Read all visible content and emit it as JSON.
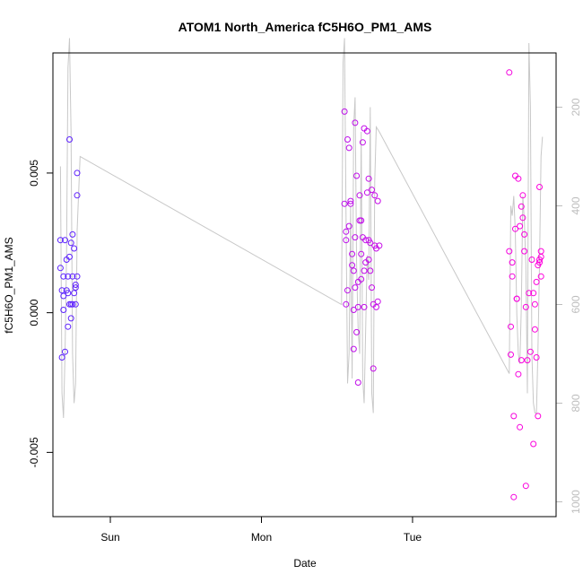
{
  "chart_data": {
    "type": "scatter",
    "title": "ATOM1 North_America fC5H6O_PM1_AMS",
    "xlabel": "Date",
    "ylabel": "fC5H6O_PM1_AMS",
    "x_unit": "days since Sun 00:00",
    "xlim": [
      -0.38,
      2.95
    ],
    "ylim": [
      -0.0073,
      0.0093
    ],
    "x_ticks": [
      {
        "value": 0,
        "label": "Sun"
      },
      {
        "value": 1,
        "label": "Mon"
      },
      {
        "value": 2,
        "label": "Tue"
      }
    ],
    "y_ticks": [
      {
        "value": -0.005,
        "label": "-0.005"
      },
      {
        "value": 0.0,
        "label": "0.000"
      },
      {
        "value": 0.005,
        "label": "0.005"
      }
    ],
    "right_axis": {
      "lim": [
        1030,
        90
      ],
      "ticks": [
        {
          "value": 200,
          "label": "200"
        },
        {
          "value": 400,
          "label": "400"
        },
        {
          "value": 600,
          "label": "600"
        },
        {
          "value": 800,
          "label": "800"
        },
        {
          "value": 1000,
          "label": "1000"
        }
      ],
      "color": "#bdbdbd"
    },
    "colors": {
      "start": "#5a22ff",
      "end": "#ff00dc",
      "altitude_line": "#c8c8c8"
    },
    "series": [
      {
        "color_scale": [
          0.0,
          1.0
        ],
        "x": [
          -0.33,
          -0.33,
          -0.32,
          -0.32,
          -0.31,
          -0.31,
          -0.31,
          -0.3,
          -0.3,
          -0.29,
          -0.29,
          -0.28,
          -0.28,
          -0.28,
          -0.27,
          -0.27,
          -0.27,
          -0.26,
          -0.26,
          -0.26,
          -0.25,
          -0.25,
          -0.25,
          -0.24,
          -0.24,
          -0.23,
          -0.23,
          -0.23,
          -0.22,
          -0.22,
          -0.22,
          1.55,
          1.55,
          1.56,
          1.56,
          1.56,
          1.57,
          1.57,
          1.58,
          1.58,
          1.59,
          1.59,
          1.6,
          1.6,
          1.61,
          1.61,
          1.61,
          1.62,
          1.62,
          1.62,
          1.63,
          1.63,
          1.64,
          1.64,
          1.64,
          1.65,
          1.65,
          1.66,
          1.66,
          1.66,
          1.67,
          1.67,
          1.68,
          1.68,
          1.68,
          1.69,
          1.69,
          1.7,
          1.7,
          1.71,
          1.71,
          1.71,
          1.72,
          1.72,
          1.73,
          1.73,
          1.74,
          1.74,
          1.75,
          1.75,
          1.76,
          1.76,
          1.77,
          1.77,
          1.78,
          2.64,
          2.64,
          2.65,
          2.65,
          2.66,
          2.66,
          2.67,
          2.67,
          2.68,
          2.68,
          2.69,
          2.69,
          2.7,
          2.7,
          2.71,
          2.71,
          2.72,
          2.72,
          2.73,
          2.73,
          2.74,
          2.74,
          2.75,
          2.75,
          2.76,
          2.77,
          2.78,
          2.79,
          2.8,
          2.8,
          2.81,
          2.81,
          2.82,
          2.82,
          2.83,
          2.83,
          2.84,
          2.84,
          2.84,
          2.85,
          2.85,
          2.85
        ],
        "y": [
          0.0026,
          0.0016,
          0.0008,
          -0.0016,
          0.0013,
          0.0006,
          0.0001,
          -0.0014,
          0.0026,
          0.0019,
          0.0008,
          0.0013,
          0.0007,
          -0.0005,
          0.002,
          0.0003,
          0.0062,
          -0.0002,
          0.0003,
          0.0025,
          0.0013,
          0.0028,
          0.0003,
          0.0007,
          0.0023,
          0.001,
          0.0009,
          0.0003,
          0.005,
          0.0042,
          0.0013,
          0.0072,
          0.0039,
          0.0029,
          0.0026,
          0.0003,
          0.0008,
          0.0062,
          0.0059,
          0.0031,
          0.004,
          0.0039,
          0.0021,
          0.0017,
          0.0015,
          -0.0013,
          0.0001,
          0.0027,
          0.0068,
          0.0009,
          -0.0007,
          0.0049,
          0.0011,
          0.0002,
          -0.0025,
          0.0042,
          0.0033,
          0.0033,
          0.0021,
          0.0012,
          0.0061,
          0.0027,
          0.0066,
          0.0015,
          0.0002,
          0.0018,
          0.0026,
          0.0043,
          0.0065,
          0.0026,
          0.0019,
          0.0048,
          0.0025,
          0.0015,
          0.0044,
          0.0009,
          -0.002,
          0.0003,
          0.0024,
          0.0042,
          0.0023,
          0.0002,
          0.004,
          0.0004,
          0.0024,
          0.0022,
          0.0086,
          -0.0005,
          -0.0015,
          0.0018,
          0.0013,
          -0.0066,
          -0.0037,
          0.0049,
          0.003,
          0.0005,
          0.0005,
          0.0048,
          -0.0022,
          0.0031,
          -0.0041,
          0.0038,
          -0.0017,
          0.0034,
          0.0042,
          0.0028,
          0.0022,
          0.0002,
          -0.0062,
          -0.0017,
          0.0007,
          -0.0014,
          0.0019,
          0.0007,
          -0.0047,
          0.0003,
          -0.0006,
          0.0011,
          -0.0016,
          0.0017,
          -0.0037,
          0.0045,
          0.0019,
          0.0018,
          0.0013,
          0.0022,
          0.002
        ]
      },
      {
        "name": "",
        "kind": "line",
        "axis": "right",
        "x": [
          -0.33,
          -0.32,
          -0.31,
          -0.3,
          -0.29,
          -0.28,
          -0.27,
          -0.26,
          -0.25,
          -0.24,
          -0.23,
          -0.22,
          -0.2,
          1.53,
          1.54,
          1.55,
          1.56,
          1.57,
          1.58,
          1.59,
          1.6,
          1.61,
          1.62,
          1.63,
          1.64,
          1.65,
          1.66,
          1.67,
          1.68,
          1.69,
          1.7,
          1.71,
          1.72,
          1.73,
          1.74,
          1.75,
          1.76,
          1.78,
          2.64,
          2.65,
          2.66,
          2.67,
          2.68,
          2.69,
          2.7,
          2.71,
          2.72,
          2.73,
          2.74,
          2.75,
          2.76,
          2.77,
          2.78,
          2.79,
          2.8,
          2.81,
          2.82,
          2.83,
          2.84,
          2.85,
          2.86
        ],
        "y": [
          320,
          780,
          830,
          700,
          500,
          120,
          60,
          250,
          700,
          800,
          760,
          450,
          300,
          600,
          110,
          60,
          420,
          760,
          700,
          400,
          750,
          240,
          180,
          520,
          650,
          700,
          250,
          750,
          800,
          650,
          500,
          550,
          200,
          780,
          820,
          350,
          240,
          250,
          740,
          400,
          420,
          380,
          450,
          620,
          700,
          720,
          600,
          380,
          430,
          520,
          780,
          70,
          200,
          700,
          800,
          820,
          820,
          690,
          520,
          300,
          260
        ]
      }
    ]
  }
}
